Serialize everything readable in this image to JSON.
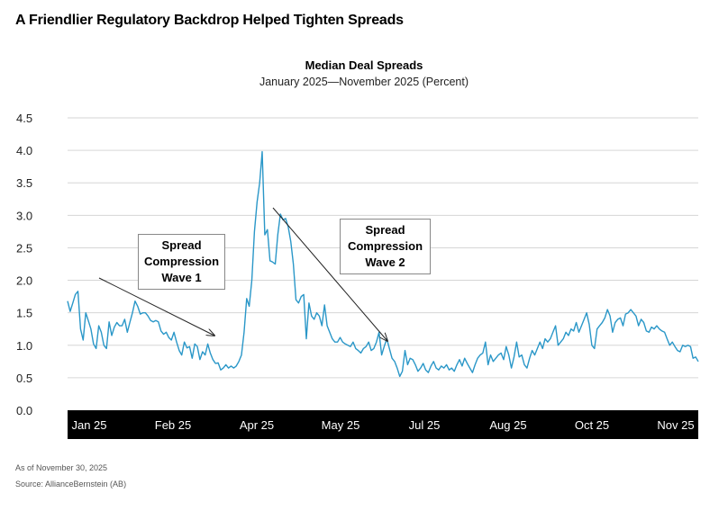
{
  "headline": "A Friendlier Regulatory Backdrop Helped Tighten Spreads",
  "footnotes": {
    "as_of": "As of November 30, 2025",
    "source": "Source: AllianceBernstein (AB)"
  },
  "annotations": [
    {
      "lines": [
        "Spread",
        "Compression",
        "Wave 1"
      ]
    },
    {
      "lines": [
        "Spread",
        "Compression",
        "Wave 2"
      ]
    }
  ],
  "colors": {
    "line": "#2a97c8",
    "axis_band": "#000000",
    "grid": "#d6d6d6",
    "arrow": "#222222"
  },
  "chart_data": {
    "type": "line",
    "title": "Median Deal Spreads",
    "subtitle": "January 2025—November 2025 (Percent)",
    "xlabel": "",
    "ylabel": "",
    "ylim": [
      0,
      4.5
    ],
    "yticks": [
      "4.5",
      "4.0",
      "3.5",
      "3.0",
      "2.5",
      "2.0",
      "1.5",
      "1.0",
      "0.5",
      "0.0"
    ],
    "xticks": [
      "Jan 25",
      "Feb 25",
      "Apr 25",
      "May 25",
      "Jul 25",
      "Aug 25",
      "Oct 25",
      "Nov 25"
    ],
    "grid": true,
    "series": [
      {
        "values": [
          1.68,
          1.52,
          1.65,
          1.78,
          1.83,
          1.25,
          1.08,
          1.5,
          1.38,
          1.25,
          1.02,
          0.95,
          1.3,
          1.2,
          1.0,
          0.95,
          1.36,
          1.15,
          1.28,
          1.35,
          1.3,
          1.3,
          1.4,
          1.2,
          1.35,
          1.5,
          1.68,
          1.6,
          1.48,
          1.5,
          1.5,
          1.45,
          1.38,
          1.36,
          1.38,
          1.36,
          1.22,
          1.17,
          1.2,
          1.12,
          1.08,
          1.2,
          1.05,
          0.92,
          0.85,
          1.05,
          0.96,
          0.98,
          0.8,
          1.02,
          0.98,
          0.78,
          0.9,
          0.85,
          1.02,
          0.88,
          0.78,
          0.72,
          0.73,
          0.62,
          0.65,
          0.7,
          0.65,
          0.68,
          0.65,
          0.68,
          0.75,
          0.85,
          1.2,
          1.72,
          1.6,
          2.0,
          2.75,
          3.2,
          3.5,
          3.98,
          2.7,
          2.78,
          2.3,
          2.28,
          2.25,
          2.7,
          3.02,
          2.93,
          2.95,
          2.82,
          2.6,
          2.25,
          1.7,
          1.65,
          1.75,
          1.78,
          1.1,
          1.65,
          1.45,
          1.4,
          1.5,
          1.45,
          1.3,
          1.62,
          1.3,
          1.2,
          1.1,
          1.05,
          1.05,
          1.12,
          1.05,
          1.02,
          1.0,
          0.98,
          1.05,
          0.95,
          0.92,
          0.88,
          0.95,
          0.98,
          1.05,
          0.92,
          0.95,
          1.05,
          1.2,
          0.85,
          0.98,
          1.1,
          0.95,
          0.8,
          0.75,
          0.65,
          0.52,
          0.6,
          0.92,
          0.7,
          0.8,
          0.78,
          0.7,
          0.6,
          0.65,
          0.72,
          0.62,
          0.58,
          0.68,
          0.75,
          0.65,
          0.62,
          0.68,
          0.65,
          0.7,
          0.62,
          0.65,
          0.6,
          0.7,
          0.78,
          0.68,
          0.8,
          0.72,
          0.65,
          0.58,
          0.7,
          0.8,
          0.85,
          0.88,
          1.05,
          0.7,
          0.85,
          0.75,
          0.8,
          0.85,
          0.88,
          0.78,
          0.98,
          0.85,
          0.65,
          0.82,
          1.05,
          0.82,
          0.85,
          0.7,
          0.65,
          0.8,
          0.92,
          0.85,
          0.95,
          1.05,
          0.95,
          1.1,
          1.05,
          1.1,
          1.2,
          1.3,
          1.0,
          1.05,
          1.1,
          1.2,
          1.15,
          1.25,
          1.22,
          1.35,
          1.2,
          1.3,
          1.4,
          1.5,
          1.32,
          1.0,
          0.95,
          1.25,
          1.3,
          1.35,
          1.42,
          1.55,
          1.45,
          1.2,
          1.35,
          1.4,
          1.42,
          1.3,
          1.48,
          1.5,
          1.55,
          1.5,
          1.45,
          1.3,
          1.4,
          1.35,
          1.22,
          1.2,
          1.28,
          1.25,
          1.3,
          1.25,
          1.22,
          1.2,
          1.1,
          1.0,
          1.05,
          0.98,
          0.92,
          0.9,
          1.0,
          0.98,
          1.0,
          0.98,
          0.8,
          0.82,
          0.75
        ]
      }
    ]
  }
}
